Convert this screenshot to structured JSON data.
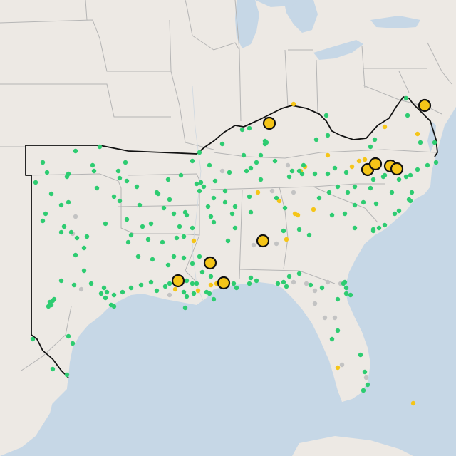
{
  "colors": {
    "land": "#ede9e4",
    "water": "#c6d7e6",
    "state_border": "#b5b5b5",
    "region_outline": "#111111",
    "green_marker": "#2ecc71",
    "yellow_marker": "#f5c518",
    "gray_marker": "#c3c3c3",
    "large_marker_fill": "#f5c518",
    "large_marker_stroke": "#111111"
  },
  "legend": null,
  "markers": {
    "green_count": 260,
    "yellow_small_count": 24,
    "gray_count": 18,
    "large_yellow_count": 12
  }
}
